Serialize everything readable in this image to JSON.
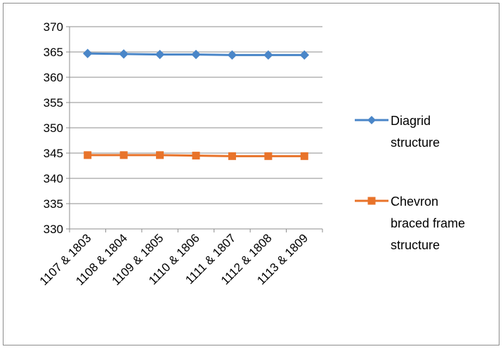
{
  "chart_data": {
    "type": "line",
    "categories": [
      "1107 & 1803",
      "1108 & 1804",
      "1109 & 1805",
      "1110 & 1806",
      "1111 & 1807",
      "1112 & 1808",
      "1113 & 1809"
    ],
    "series": [
      {
        "name_lines": [
          "Diagrid",
          "structure"
        ],
        "color": "#4a86c8",
        "marker": "diamond",
        "values": [
          364.7,
          364.6,
          364.5,
          364.5,
          364.4,
          364.4,
          364.4
        ]
      },
      {
        "name_lines": [
          "Chevron",
          "braced frame",
          "structure"
        ],
        "color": "#e8732a",
        "marker": "square",
        "values": [
          344.6,
          344.6,
          344.6,
          344.5,
          344.4,
          344.4,
          344.4
        ]
      }
    ],
    "yticks": [
      "370",
      "365",
      "360",
      "355",
      "350",
      "345",
      "340",
      "335",
      "330"
    ],
    "ylim": [
      330,
      370
    ],
    "grid": true,
    "legend": "right"
  }
}
